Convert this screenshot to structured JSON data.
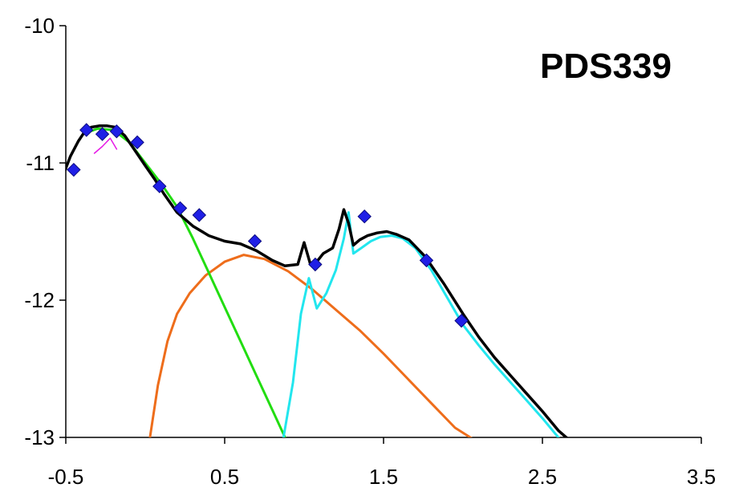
{
  "chart_data": {
    "type": "scatter",
    "title": "PDS339",
    "xlabel": "",
    "ylabel": "",
    "xlim": [
      -0.5,
      3.5
    ],
    "ylim": [
      -13,
      -10
    ],
    "x_ticks": [
      -0.5,
      0.5,
      1.5,
      2.5,
      3.5
    ],
    "x_tick_labels": [
      "-0.5",
      "0.5",
      "1.5",
      "2.5",
      "3.5"
    ],
    "y_ticks": [
      -13,
      -12,
      -11,
      -10
    ],
    "y_tick_labels": [
      "-13",
      "-12",
      "-11",
      "-10"
    ],
    "grid": false,
    "legend": "none",
    "colors": {
      "points": "#1f1fe6",
      "total": "#000000",
      "green": "#22dd11",
      "orange": "#ee6d1b",
      "cyan": "#22e6ee",
      "magenta": "#e619e6"
    },
    "points": [
      {
        "x": -0.45,
        "y": -11.05
      },
      {
        "x": -0.37,
        "y": -10.76
      },
      {
        "x": -0.27,
        "y": -10.79
      },
      {
        "x": -0.18,
        "y": -10.77
      },
      {
        "x": -0.05,
        "y": -10.85
      },
      {
        "x": 0.09,
        "y": -11.17
      },
      {
        "x": 0.22,
        "y": -11.33
      },
      {
        "x": 0.34,
        "y": -11.38
      },
      {
        "x": 0.69,
        "y": -11.57
      },
      {
        "x": 1.07,
        "y": -11.74
      },
      {
        "x": 1.38,
        "y": -11.39
      },
      {
        "x": 1.77,
        "y": -11.71
      },
      {
        "x": 1.99,
        "y": -12.15
      }
    ],
    "series": [
      {
        "x": [
          -0.52,
          -0.47,
          -0.42,
          -0.38,
          -0.34,
          -0.29,
          -0.24,
          -0.19,
          -0.13,
          -0.07,
          0.0,
          0.06,
          0.12,
          0.2,
          0.3,
          0.4,
          0.5,
          0.6,
          0.7,
          0.8,
          0.88,
          0.96,
          1.0,
          1.04,
          1.08,
          1.12,
          1.18,
          1.22,
          1.25,
          1.28,
          1.31,
          1.35,
          1.4,
          1.46,
          1.52,
          1.58,
          1.66,
          1.76,
          1.88,
          2.0,
          2.1,
          2.2,
          2.3,
          2.4,
          2.5,
          2.6,
          2.7
        ],
        "y": [
          -11.1,
          -10.95,
          -10.84,
          -10.77,
          -10.74,
          -10.73,
          -10.73,
          -10.74,
          -10.8,
          -10.9,
          -11.02,
          -11.12,
          -11.23,
          -11.36,
          -11.46,
          -11.53,
          -11.57,
          -11.59,
          -11.64,
          -11.71,
          -11.75,
          -11.74,
          -11.58,
          -11.74,
          -11.72,
          -11.66,
          -11.62,
          -11.48,
          -11.34,
          -11.44,
          -11.6,
          -11.56,
          -11.53,
          -11.51,
          -11.5,
          -11.52,
          -11.56,
          -11.68,
          -11.88,
          -12.1,
          -12.27,
          -12.42,
          -12.55,
          -12.68,
          -12.81,
          -12.95,
          -13.05
        ]
      },
      {
        "x": [
          -0.37,
          -0.3,
          -0.2,
          -0.1,
          0.0,
          0.1,
          0.2,
          0.3,
          0.4,
          0.5,
          0.6,
          0.7,
          0.8,
          0.88
        ],
        "y": [
          -10.78,
          -10.75,
          -10.76,
          -10.85,
          -11.0,
          -11.15,
          -11.32,
          -11.55,
          -11.8,
          -12.05,
          -12.3,
          -12.55,
          -12.8,
          -13.0
        ]
      },
      {
        "x": [
          0.03,
          0.08,
          0.14,
          0.2,
          0.28,
          0.38,
          0.5,
          0.62,
          0.75,
          0.9,
          1.05,
          1.2,
          1.35,
          1.5,
          1.65,
          1.8,
          1.95,
          2.1
        ],
        "y": [
          -13.0,
          -12.62,
          -12.3,
          -12.1,
          -11.95,
          -11.82,
          -11.72,
          -11.67,
          -11.7,
          -11.79,
          -11.92,
          -12.07,
          -12.22,
          -12.39,
          -12.57,
          -12.75,
          -12.93,
          -13.04
        ]
      },
      {
        "x": [
          0.87,
          0.93,
          0.98,
          1.03,
          1.08,
          1.14,
          1.2,
          1.25,
          1.28,
          1.31,
          1.36,
          1.42,
          1.48,
          1.55,
          1.62,
          1.7,
          1.8,
          1.9,
          2.0,
          2.1,
          2.2,
          2.3,
          2.4,
          2.5,
          2.6,
          2.7
        ],
        "y": [
          -13.0,
          -12.6,
          -12.1,
          -11.84,
          -12.06,
          -11.95,
          -11.78,
          -11.55,
          -11.36,
          -11.66,
          -11.62,
          -11.57,
          -11.54,
          -11.53,
          -11.55,
          -11.62,
          -11.78,
          -11.98,
          -12.18,
          -12.33,
          -12.47,
          -12.6,
          -12.73,
          -12.86,
          -13.0,
          -13.12
        ]
      },
      {
        "x": [
          -0.32,
          -0.27,
          -0.22,
          -0.18
        ],
        "y": [
          -10.93,
          -10.88,
          -10.82,
          -10.9
        ]
      }
    ]
  }
}
